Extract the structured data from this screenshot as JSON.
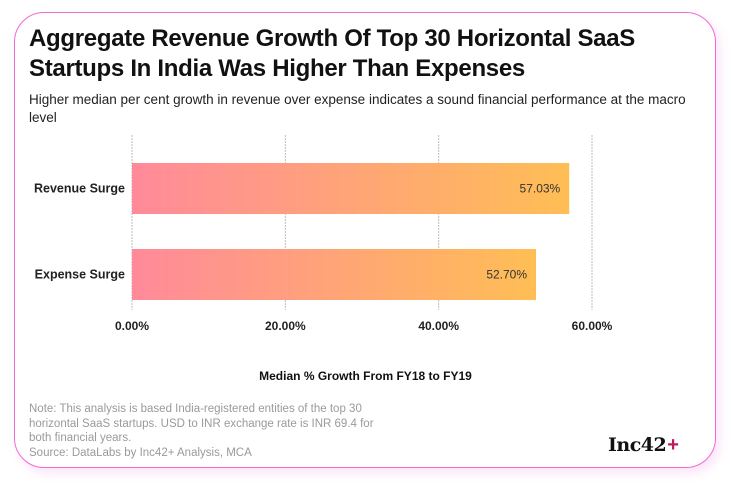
{
  "header": {
    "title": "Aggregate Revenue Growth Of Top 30 Horizontal SaaS Startups In India Was Higher Than Expenses",
    "subtitle": "Higher median per cent growth in revenue over expense indicates a sound financial performance at the macro level"
  },
  "footer": {
    "note": "Note: This analysis is based India-registered entities of the top 30 horizontal SaaS startups. USD to INR exchange rate is INR 69.4 for both financial years.",
    "source": "Source: DataLabs by Inc42+ Analysis, MCA",
    "logo_text": "Inc42",
    "logo_plus": "+"
  },
  "colors": {
    "card_border": "#f06ad6",
    "bar_gradient_start": "#ff8a9a",
    "bar_gradient_end": "#ffbe55",
    "logo_plus": "#c2185b"
  },
  "chart_data": {
    "type": "bar",
    "orientation": "horizontal",
    "title": "Aggregate Revenue Growth Of Top 30 Horizontal SaaS Startups In India Was Higher Than Expenses",
    "subtitle": "Higher median per cent growth in revenue over expense indicates a sound financial performance at the macro level",
    "categories": [
      "Revenue Surge",
      "Expense Surge"
    ],
    "values": [
      57.03,
      52.7
    ],
    "data_labels": [
      "57.03%",
      "52.70%"
    ],
    "xlabel": "Median % Growth From FY18 to FY19",
    "ylabel": "",
    "xlim": [
      0,
      60
    ],
    "xticks": [
      0,
      20,
      40,
      60
    ],
    "xtick_labels": [
      "0.00%",
      "20.00%",
      "40.00%",
      "60.00%"
    ],
    "grid": true,
    "legend": "none"
  }
}
